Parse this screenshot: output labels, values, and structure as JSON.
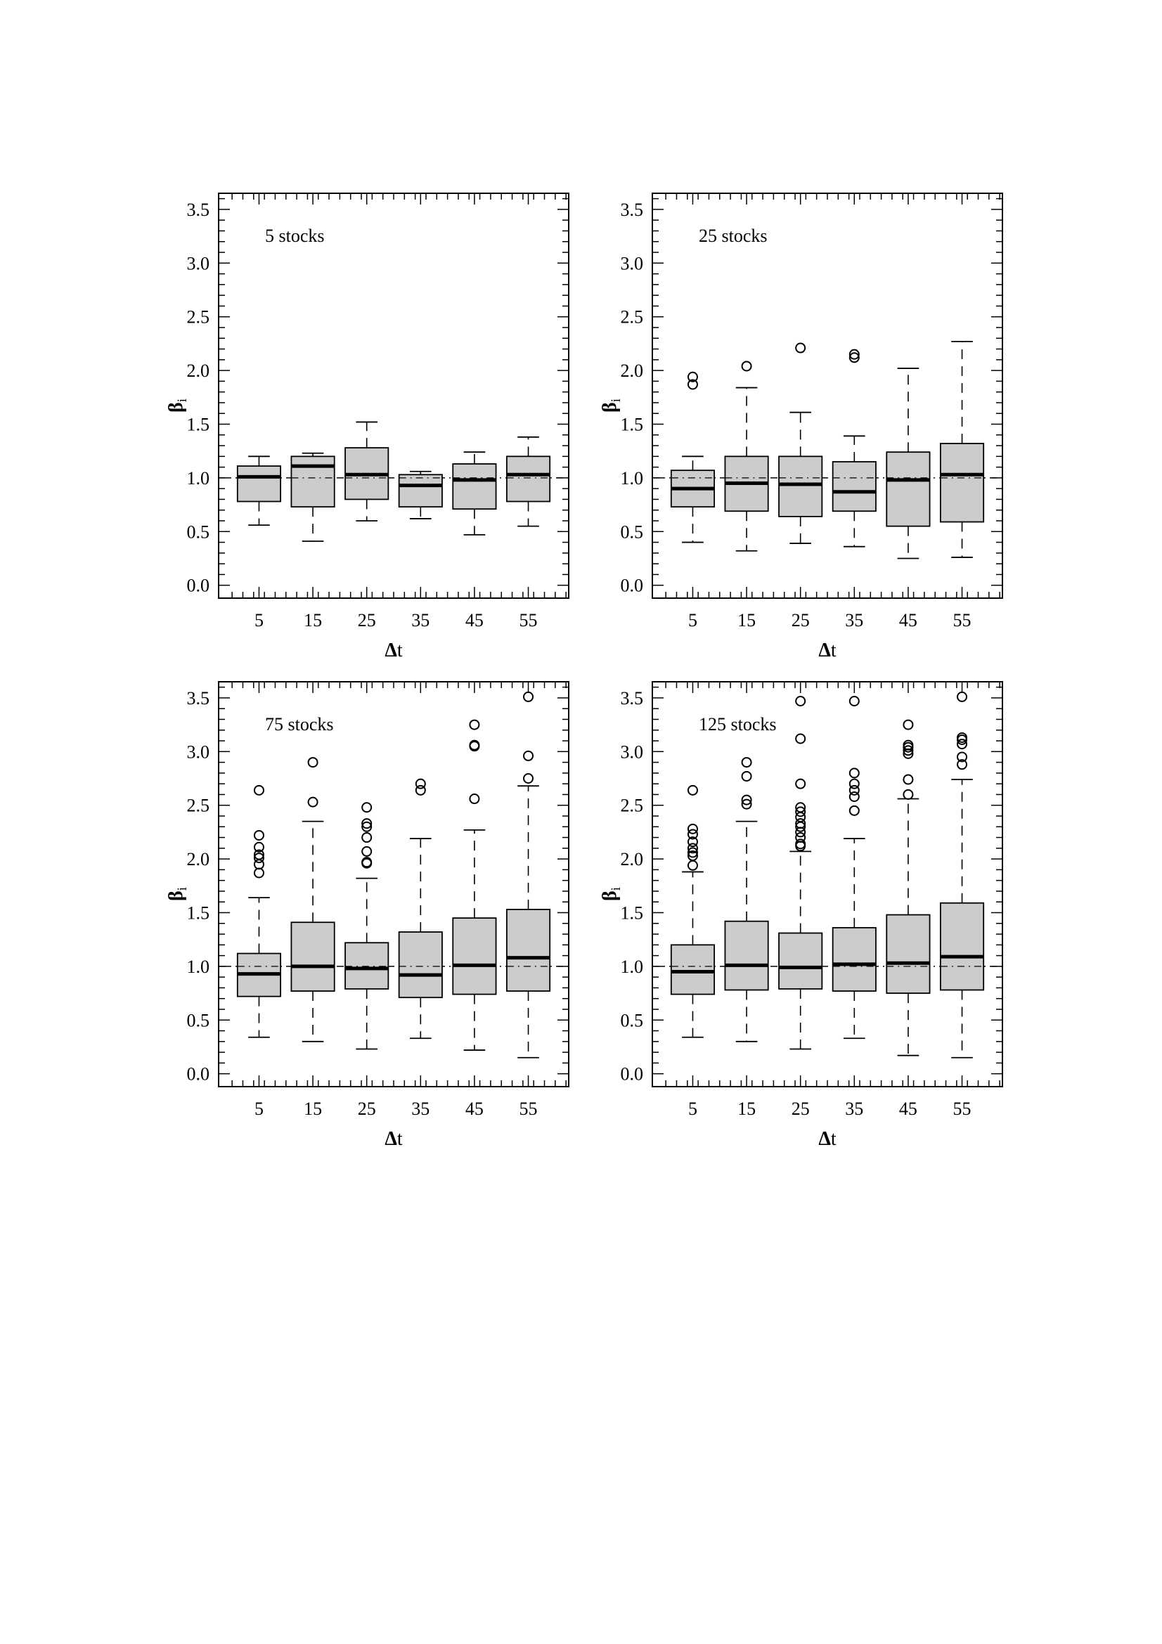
{
  "chart_data": [
    {
      "type": "boxplot",
      "annotation": "5 stocks",
      "xlabel": "Δt",
      "ylabel": "β",
      "ylabel_sub": "i",
      "ylim": [
        -0.12,
        3.65
      ],
      "yticks": [
        "0.0",
        "0.5",
        "1.0",
        "1.5",
        "2.0",
        "2.5",
        "3.0",
        "3.5"
      ],
      "reference_line": 1.0,
      "categories": [
        "5",
        "15",
        "25",
        "35",
        "45",
        "55"
      ],
      "boxes": [
        {
          "whisker_low": 0.56,
          "q1": 0.78,
          "median": 1.01,
          "q3": 1.11,
          "whisker_high": 1.2,
          "outliers": []
        },
        {
          "whisker_low": 0.41,
          "q1": 0.73,
          "median": 1.11,
          "q3": 1.2,
          "whisker_high": 1.23,
          "outliers": []
        },
        {
          "whisker_low": 0.6,
          "q1": 0.8,
          "median": 1.03,
          "q3": 1.28,
          "whisker_high": 1.52,
          "outliers": []
        },
        {
          "whisker_low": 0.62,
          "q1": 0.73,
          "median": 0.93,
          "q3": 1.03,
          "whisker_high": 1.06,
          "outliers": []
        },
        {
          "whisker_low": 0.47,
          "q1": 0.71,
          "median": 0.98,
          "q3": 1.13,
          "whisker_high": 1.24,
          "outliers": []
        },
        {
          "whisker_low": 0.55,
          "q1": 0.78,
          "median": 1.03,
          "q3": 1.2,
          "whisker_high": 1.38,
          "outliers": []
        }
      ]
    },
    {
      "type": "boxplot",
      "annotation": "25 stocks",
      "xlabel": "Δt",
      "ylabel": "β",
      "ylabel_sub": "i",
      "ylim": [
        -0.12,
        3.65
      ],
      "yticks": [
        "0.0",
        "0.5",
        "1.0",
        "1.5",
        "2.0",
        "2.5",
        "3.0",
        "3.5"
      ],
      "reference_line": 1.0,
      "categories": [
        "5",
        "15",
        "25",
        "35",
        "45",
        "55"
      ],
      "boxes": [
        {
          "whisker_low": 0.4,
          "q1": 0.73,
          "median": 0.9,
          "q3": 1.07,
          "whisker_high": 1.2,
          "outliers": [
            1.87,
            1.94
          ]
        },
        {
          "whisker_low": 0.32,
          "q1": 0.69,
          "median": 0.95,
          "q3": 1.2,
          "whisker_high": 1.84,
          "outliers": [
            2.04
          ]
        },
        {
          "whisker_low": 0.39,
          "q1": 0.64,
          "median": 0.94,
          "q3": 1.2,
          "whisker_high": 1.61,
          "outliers": [
            2.21
          ]
        },
        {
          "whisker_low": 0.36,
          "q1": 0.69,
          "median": 0.87,
          "q3": 1.15,
          "whisker_high": 1.39,
          "outliers": [
            2.12,
            2.15
          ]
        },
        {
          "whisker_low": 0.25,
          "q1": 0.55,
          "median": 0.98,
          "q3": 1.24,
          "whisker_high": 2.02,
          "outliers": []
        },
        {
          "whisker_low": 0.26,
          "q1": 0.59,
          "median": 1.03,
          "q3": 1.32,
          "whisker_high": 2.27,
          "outliers": []
        }
      ]
    },
    {
      "type": "boxplot",
      "annotation": "75 stocks",
      "xlabel": "Δt",
      "ylabel": "β",
      "ylabel_sub": "i",
      "ylim": [
        -0.12,
        3.65
      ],
      "yticks": [
        "0.0",
        "0.5",
        "1.0",
        "1.5",
        "2.0",
        "2.5",
        "3.0",
        "3.5"
      ],
      "reference_line": 1.0,
      "categories": [
        "5",
        "15",
        "25",
        "35",
        "45",
        "55"
      ],
      "boxes": [
        {
          "whisker_low": 0.34,
          "q1": 0.72,
          "median": 0.93,
          "q3": 1.12,
          "whisker_high": 1.64,
          "outliers": [
            1.87,
            1.95,
            2.01,
            2.04,
            2.11,
            2.22,
            2.64
          ]
        },
        {
          "whisker_low": 0.3,
          "q1": 0.77,
          "median": 1.0,
          "q3": 1.41,
          "whisker_high": 2.35,
          "outliers": [
            2.53,
            2.9
          ]
        },
        {
          "whisker_low": 0.23,
          "q1": 0.79,
          "median": 0.98,
          "q3": 1.22,
          "whisker_high": 1.82,
          "outliers": [
            1.96,
            1.97,
            2.07,
            2.2,
            2.3,
            2.33,
            2.48
          ]
        },
        {
          "whisker_low": 0.33,
          "q1": 0.71,
          "median": 0.92,
          "q3": 1.32,
          "whisker_high": 2.19,
          "outliers": [
            2.64,
            2.7
          ]
        },
        {
          "whisker_low": 0.22,
          "q1": 0.74,
          "median": 1.01,
          "q3": 1.45,
          "whisker_high": 2.27,
          "outliers": [
            2.56,
            3.05,
            3.06,
            3.25
          ]
        },
        {
          "whisker_low": 0.15,
          "q1": 0.77,
          "median": 1.08,
          "q3": 1.53,
          "whisker_high": 2.68,
          "outliers": [
            2.75,
            2.96,
            3.51
          ]
        }
      ]
    },
    {
      "type": "boxplot",
      "annotation": "125 stocks",
      "xlabel": "Δt",
      "ylabel": "β",
      "ylabel_sub": "i",
      "ylim": [
        -0.12,
        3.65
      ],
      "yticks": [
        "0.0",
        "0.5",
        "1.0",
        "1.5",
        "2.0",
        "2.5",
        "3.0",
        "3.5"
      ],
      "reference_line": 1.0,
      "categories": [
        "5",
        "15",
        "25",
        "35",
        "45",
        "55"
      ],
      "boxes": [
        {
          "whisker_low": 0.34,
          "q1": 0.74,
          "median": 0.95,
          "q3": 1.2,
          "whisker_high": 1.88,
          "outliers": [
            1.94,
            2.03,
            2.06,
            2.1,
            2.16,
            2.23,
            2.28,
            2.64
          ]
        },
        {
          "whisker_low": 0.3,
          "q1": 0.78,
          "median": 1.01,
          "q3": 1.42,
          "whisker_high": 2.35,
          "outliers": [
            2.51,
            2.55,
            2.77,
            2.9
          ]
        },
        {
          "whisker_low": 0.23,
          "q1": 0.79,
          "median": 0.99,
          "q3": 1.31,
          "whisker_high": 2.07,
          "outliers": [
            2.12,
            2.14,
            2.2,
            2.25,
            2.3,
            2.33,
            2.39,
            2.44,
            2.48,
            2.7,
            3.12,
            3.47
          ]
        },
        {
          "whisker_low": 0.33,
          "q1": 0.77,
          "median": 1.02,
          "q3": 1.36,
          "whisker_high": 2.19,
          "outliers": [
            2.45,
            2.58,
            2.64,
            2.7,
            2.8,
            3.47
          ]
        },
        {
          "whisker_low": 0.17,
          "q1": 0.75,
          "median": 1.03,
          "q3": 1.48,
          "whisker_high": 2.56,
          "outliers": [
            2.6,
            2.74,
            2.98,
            3.01,
            3.04,
            3.06,
            3.25
          ]
        },
        {
          "whisker_low": 0.15,
          "q1": 0.78,
          "median": 1.09,
          "q3": 1.59,
          "whisker_high": 2.74,
          "outliers": [
            2.88,
            2.95,
            3.07,
            3.11,
            3.13,
            3.51
          ]
        }
      ]
    }
  ]
}
